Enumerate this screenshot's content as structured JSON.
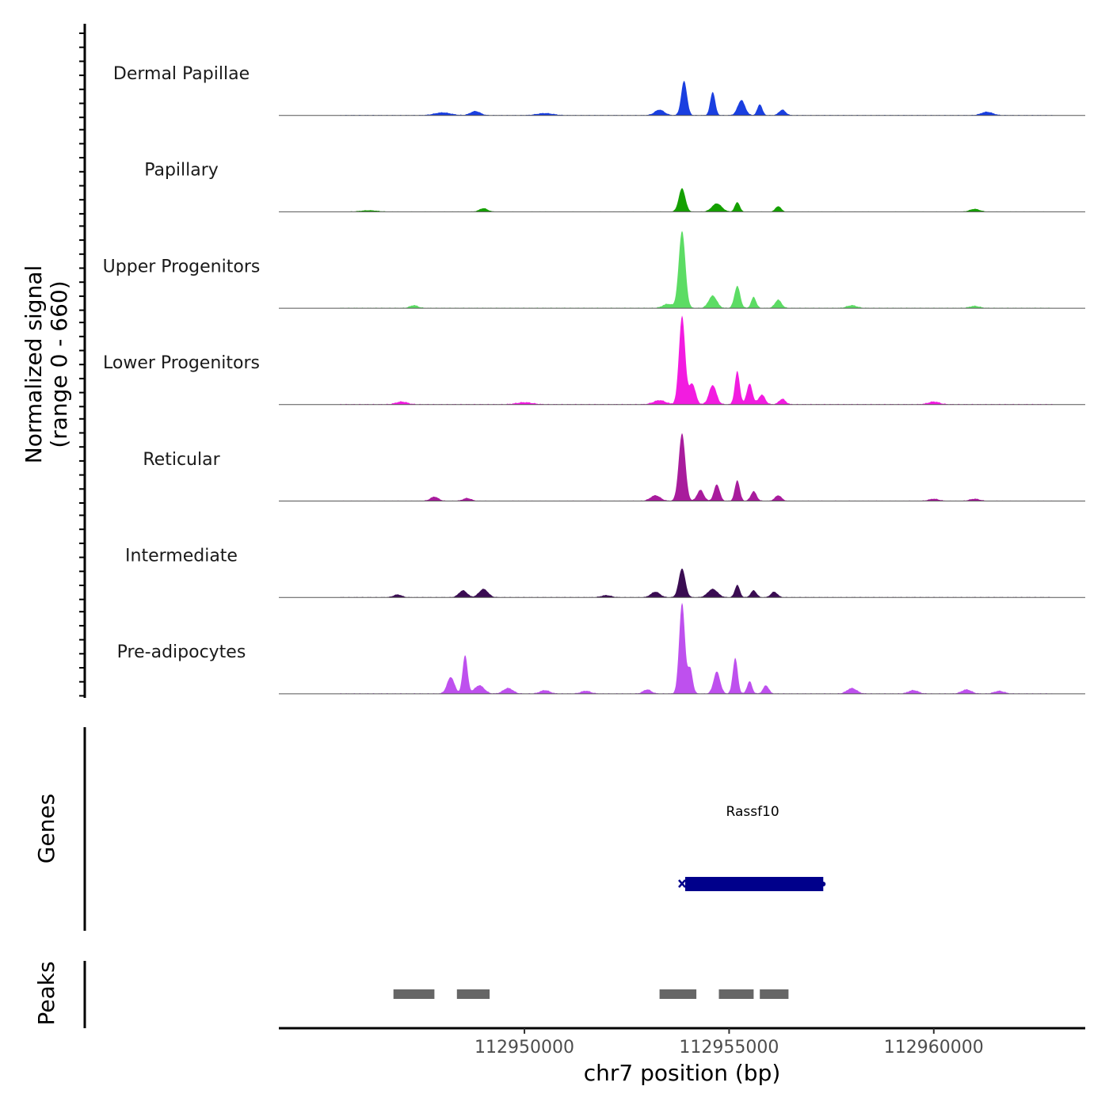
{
  "chart_data": {
    "type": "area",
    "chromosome": "chr7",
    "xlim": [
      112944000,
      112963700
    ],
    "ylim": [
      0,
      660
    ],
    "ylabel_line1": "Normalized signal",
    "ylabel_line2": "(range 0 - 660)",
    "xlabel": "chr7 position (bp)",
    "x_ticks": [
      {
        "value": 112950000,
        "label": "112950000"
      },
      {
        "value": 112955000,
        "label": "112955000"
      },
      {
        "value": 112960000,
        "label": "112960000"
      }
    ],
    "series": [
      {
        "name": "Dermal Papillae",
        "color": "#1a3fe0",
        "peaks": [
          [
            112953900,
            250,
            70
          ],
          [
            112954600,
            170,
            60
          ],
          [
            112955300,
            110,
            90
          ],
          [
            112955750,
            80,
            60
          ],
          [
            112956300,
            40,
            80
          ],
          [
            112953300,
            40,
            120
          ],
          [
            112948800,
            30,
            120
          ],
          [
            112948000,
            20,
            200
          ],
          [
            112961300,
            25,
            140
          ],
          [
            112950500,
            15,
            200
          ]
        ],
        "baseline": 8
      },
      {
        "name": "Papillary",
        "color": "#14a000",
        "peaks": [
          [
            112953850,
            170,
            80
          ],
          [
            112954700,
            60,
            120
          ],
          [
            112955200,
            70,
            60
          ],
          [
            112956200,
            40,
            70
          ],
          [
            112949000,
            25,
            100
          ],
          [
            112961000,
            20,
            120
          ],
          [
            112946200,
            10,
            200
          ]
        ],
        "baseline": 6
      },
      {
        "name": "Upper Progenitors",
        "color": "#5cdc64",
        "peaks": [
          [
            112953850,
            560,
            80
          ],
          [
            112954600,
            90,
            100
          ],
          [
            112955200,
            160,
            70
          ],
          [
            112955600,
            80,
            60
          ],
          [
            112956200,
            60,
            80
          ],
          [
            112953500,
            30,
            120
          ],
          [
            112947300,
            20,
            100
          ],
          [
            112958000,
            20,
            120
          ],
          [
            112961000,
            15,
            120
          ]
        ],
        "baseline": 10
      },
      {
        "name": "Lower Progenitors",
        "color": "#f21ce0",
        "peaks": [
          [
            112953850,
            640,
            75
          ],
          [
            112954100,
            150,
            80
          ],
          [
            112954600,
            140,
            90
          ],
          [
            112955200,
            240,
            60
          ],
          [
            112955500,
            150,
            70
          ],
          [
            112955800,
            70,
            80
          ],
          [
            112956300,
            40,
            80
          ],
          [
            112953300,
            30,
            150
          ],
          [
            112947000,
            20,
            140
          ],
          [
            112950000,
            15,
            200
          ],
          [
            112960000,
            20,
            140
          ]
        ],
        "baseline": 12
      },
      {
        "name": "Reticular",
        "color": "#a81c9c",
        "peaks": [
          [
            112953850,
            490,
            80
          ],
          [
            112954300,
            80,
            80
          ],
          [
            112954700,
            120,
            70
          ],
          [
            112955200,
            150,
            60
          ],
          [
            112955600,
            70,
            70
          ],
          [
            112956200,
            40,
            80
          ],
          [
            112953200,
            40,
            120
          ],
          [
            112947800,
            30,
            100
          ],
          [
            112948600,
            20,
            100
          ],
          [
            112960000,
            15,
            120
          ],
          [
            112961000,
            15,
            120
          ]
        ],
        "baseline": 8
      },
      {
        "name": "Intermediate",
        "color": "#3a0c52",
        "peaks": [
          [
            112953850,
            210,
            80
          ],
          [
            112954600,
            60,
            120
          ],
          [
            112955200,
            90,
            60
          ],
          [
            112955600,
            50,
            70
          ],
          [
            112956100,
            40,
            80
          ],
          [
            112953200,
            40,
            110
          ],
          [
            112948500,
            50,
            100
          ],
          [
            112949000,
            60,
            110
          ],
          [
            112946900,
            20,
            100
          ],
          [
            112952000,
            15,
            120
          ]
        ],
        "baseline": 8
      },
      {
        "name": "Pre-adipocytes",
        "color": "#be50ee",
        "peaks": [
          [
            112953850,
            660,
            70
          ],
          [
            112954050,
            180,
            60
          ],
          [
            112954700,
            160,
            80
          ],
          [
            112955150,
            260,
            60
          ],
          [
            112955500,
            90,
            60
          ],
          [
            112955900,
            60,
            70
          ],
          [
            112953000,
            30,
            100
          ],
          [
            112948550,
            280,
            60
          ],
          [
            112948200,
            120,
            90
          ],
          [
            112948900,
            60,
            120
          ],
          [
            112949600,
            40,
            120
          ],
          [
            112950500,
            25,
            120
          ],
          [
            112951500,
            20,
            120
          ],
          [
            112958000,
            40,
            120
          ],
          [
            112959500,
            25,
            120
          ],
          [
            112960800,
            30,
            120
          ],
          [
            112961600,
            20,
            120
          ]
        ],
        "baseline": 10
      }
    ],
    "genes": [
      {
        "name": "Rassf10",
        "start": 112953850,
        "end": 112957300,
        "color": "#00008b"
      }
    ],
    "peaks": [
      {
        "start": 112946800,
        "end": 112947800
      },
      {
        "start": 112948350,
        "end": 112949150
      },
      {
        "start": 112953300,
        "end": 112954200
      },
      {
        "start": 112954750,
        "end": 112955600
      },
      {
        "start": 112955750,
        "end": 112956450
      }
    ],
    "genes_title": "Genes",
    "peaks_title": "Peaks",
    "peak_color": "#666666"
  }
}
